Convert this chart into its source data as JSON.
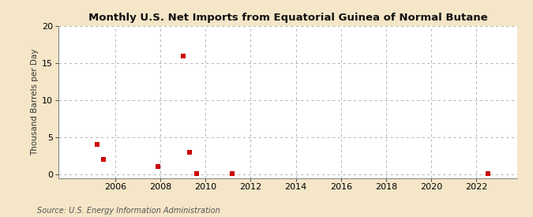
{
  "title": "Monthly U.S. Net Imports from Equatorial Guinea of Normal Butane",
  "ylabel": "Thousand Barrels per Day",
  "source": "Source: U.S. Energy Information Administration",
  "outer_bg": "#f5e6c8",
  "plot_bg": "#ffffff",
  "xlim": [
    2003.5,
    2023.8
  ],
  "ylim": [
    -0.5,
    20
  ],
  "yticks": [
    0,
    5,
    10,
    15,
    20
  ],
  "xticks": [
    2006,
    2008,
    2010,
    2012,
    2014,
    2016,
    2018,
    2020,
    2022
  ],
  "data_x": [
    2005.2,
    2005.5,
    2007.9,
    2009.0,
    2009.3,
    2009.6,
    2011.2,
    2022.5
  ],
  "data_y": [
    4.0,
    2.0,
    1.0,
    16.0,
    3.0,
    0.1,
    0.1,
    0.1
  ],
  "marker_color": "#cc0000",
  "marker_size": 5,
  "grid_color": "#aaaaaa",
  "grid_linestyle": "--",
  "title_fontsize": 9.5,
  "label_fontsize": 7.5,
  "tick_fontsize": 8,
  "source_fontsize": 7
}
